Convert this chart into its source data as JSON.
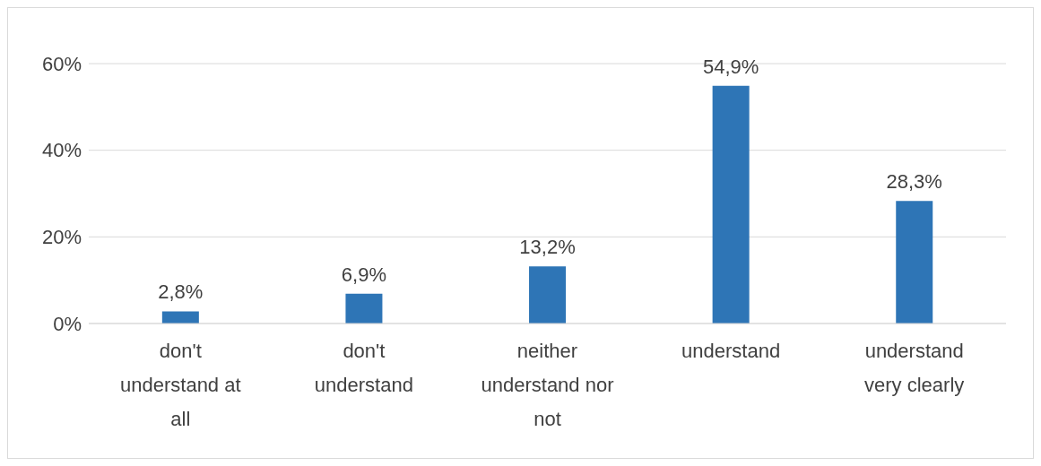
{
  "chart_data": {
    "type": "bar",
    "categories": [
      "don't understand at all",
      "don't understand",
      "neither understand nor not",
      "understand",
      "understand very clearly"
    ],
    "values": [
      2.8,
      6.9,
      13.2,
      54.9,
      28.3
    ],
    "value_labels": [
      "2,8%",
      "6,9%",
      "13,2%",
      "54,9%",
      "28,3%"
    ],
    "color": "#2e75b6",
    "ylim": [
      0,
      60
    ],
    "yticks": [
      {
        "value": 0,
        "label": "0%"
      },
      {
        "value": 20,
        "label": "20%"
      },
      {
        "value": 40,
        "label": "40%"
      },
      {
        "value": 60,
        "label": "60%"
      }
    ],
    "grid": "y"
  }
}
